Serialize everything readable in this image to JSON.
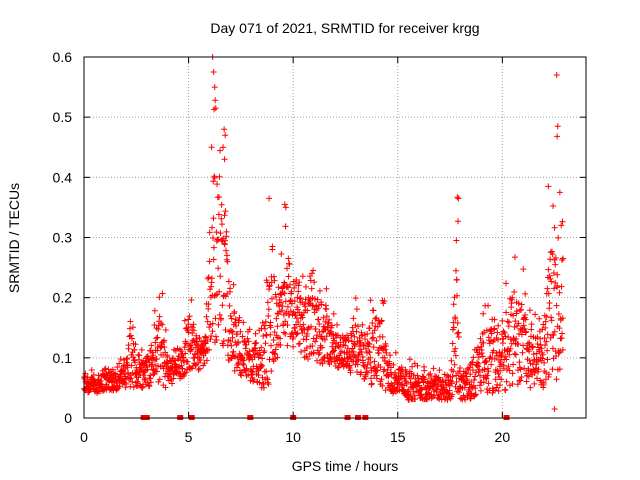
{
  "chart_data": {
    "type": "scatter",
    "title": "Day 071 of 2021, SRMTID for receiver krgg",
    "xlabel": "GPS time / hours",
    "ylabel": "SRMTID / TECUs",
    "xlim": [
      0,
      24
    ],
    "ylim": [
      0,
      0.6
    ],
    "xticks": [
      0,
      5,
      10,
      15,
      20
    ],
    "yticks": [
      0,
      0.1,
      0.2,
      0.3,
      0.4,
      0.5,
      0.6
    ],
    "grid": true,
    "marker": "plus",
    "color": "#ff0000",
    "envelope": {
      "hours": [
        0,
        0.5,
        1,
        1.5,
        2,
        2.2,
        2.5,
        3,
        3.5,
        3.8,
        4,
        4.5,
        4.8,
        5,
        5.5,
        5.8,
        6.0,
        6.2,
        6.5,
        6.8,
        7.0,
        7.5,
        8,
        8.5,
        8.8,
        9.0,
        9.3,
        9.6,
        9.8,
        10,
        10.5,
        11,
        11.5,
        12,
        12.5,
        13,
        13.5,
        14,
        14.3,
        14.5,
        15,
        15.5,
        16,
        16.5,
        17,
        17.5,
        17.8,
        18,
        18.5,
        19,
        19.5,
        20,
        20.5,
        21,
        21.5,
        22,
        22.3,
        22.6,
        22.9
      ],
      "low": [
        0.04,
        0.04,
        0.045,
        0.045,
        0.05,
        0.05,
        0.05,
        0.05,
        0.06,
        0.05,
        0.05,
        0.06,
        0.07,
        0.08,
        0.08,
        0.09,
        0.1,
        0.12,
        0.13,
        0.11,
        0.08,
        0.07,
        0.06,
        0.05,
        0.05,
        0.08,
        0.1,
        0.12,
        0.12,
        0.11,
        0.1,
        0.09,
        0.09,
        0.08,
        0.08,
        0.07,
        0.06,
        0.05,
        0.05,
        0.04,
        0.04,
        0.03,
        0.03,
        0.03,
        0.03,
        0.03,
        0.03,
        0.03,
        0.03,
        0.035,
        0.04,
        0.04,
        0.05,
        0.05,
        0.05,
        0.05,
        0.05,
        0.06,
        0.06
      ],
      "high": [
        0.08,
        0.08,
        0.09,
        0.09,
        0.11,
        0.2,
        0.12,
        0.13,
        0.2,
        0.22,
        0.12,
        0.12,
        0.16,
        0.22,
        0.14,
        0.14,
        0.4,
        0.58,
        0.47,
        0.45,
        0.26,
        0.16,
        0.16,
        0.15,
        0.28,
        0.34,
        0.22,
        0.35,
        0.28,
        0.24,
        0.25,
        0.25,
        0.24,
        0.17,
        0.16,
        0.2,
        0.18,
        0.22,
        0.23,
        0.12,
        0.11,
        0.1,
        0.09,
        0.09,
        0.08,
        0.08,
        0.36,
        0.09,
        0.12,
        0.19,
        0.2,
        0.22,
        0.29,
        0.26,
        0.17,
        0.21,
        0.38,
        0.48,
        0.33
      ]
    },
    "outliers": [
      {
        "x": 6.15,
        "y": 0.6
      },
      {
        "x": 6.2,
        "y": 0.575
      },
      {
        "x": 6.25,
        "y": 0.55
      },
      {
        "x": 6.3,
        "y": 0.515
      },
      {
        "x": 6.22,
        "y": 0.513
      },
      {
        "x": 6.1,
        "y": 0.45
      },
      {
        "x": 6.7,
        "y": 0.48
      },
      {
        "x": 6.75,
        "y": 0.47
      },
      {
        "x": 6.65,
        "y": 0.45
      },
      {
        "x": 6.72,
        "y": 0.43
      },
      {
        "x": 9.6,
        "y": 0.355
      },
      {
        "x": 9.65,
        "y": 0.35
      },
      {
        "x": 8.85,
        "y": 0.365
      },
      {
        "x": 17.85,
        "y": 0.367
      },
      {
        "x": 17.9,
        "y": 0.365
      },
      {
        "x": 17.88,
        "y": 0.327
      },
      {
        "x": 17.8,
        "y": 0.295
      },
      {
        "x": 17.82,
        "y": 0.23
      },
      {
        "x": 17.75,
        "y": 0.165
      },
      {
        "x": 22.6,
        "y": 0.57
      },
      {
        "x": 22.65,
        "y": 0.485
      },
      {
        "x": 22.62,
        "y": 0.468
      },
      {
        "x": 22.2,
        "y": 0.385
      },
      {
        "x": 22.75,
        "y": 0.375
      },
      {
        "x": 22.9,
        "y": 0.265
      },
      {
        "x": 22.5,
        "y": 0.015
      }
    ],
    "zero_markers": [
      2.85,
      3.0,
      4.6,
      5.15,
      7.95,
      10.0,
      12.6,
      13.1,
      13.45,
      20.2
    ]
  }
}
